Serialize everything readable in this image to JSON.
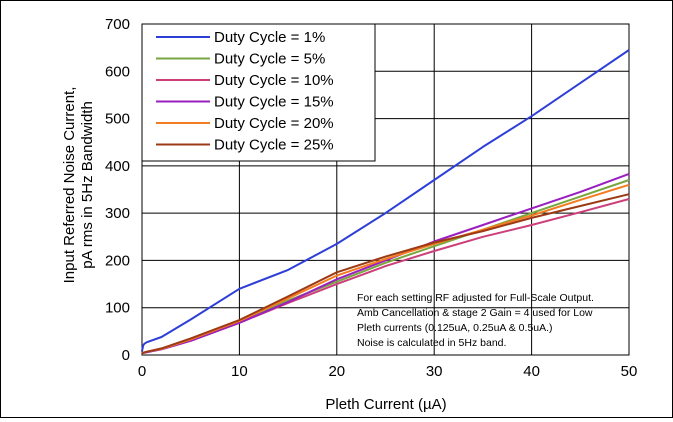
{
  "chart_data": {
    "type": "line",
    "xlabel": "Pleth Current (µA)",
    "ylabel_line1": "Input Referred Noise Current,",
    "ylabel_line2": "pA rms in 5Hz Bandwidth",
    "xlim": [
      0,
      50
    ],
    "ylim": [
      0,
      700
    ],
    "x_ticks": [
      0,
      10,
      20,
      30,
      40,
      50
    ],
    "y_ticks": [
      0,
      100,
      200,
      300,
      400,
      500,
      600,
      700
    ],
    "grid": true,
    "legend_placement": "top-left",
    "annotation": [
      "For each setting RF adjusted for Full-Scale Output.",
      "Amb Cancellation & stage 2 Gain = 4 used for Low",
      "Pleth currents (0.125uA, 0.25uA & 0.5uA.)",
      "Noise is calculated in 5Hz band."
    ],
    "series": [
      {
        "name": "Duty Cycle = 1%",
        "color": "#2e3fd8",
        "points": [
          [
            0,
            8
          ],
          [
            0.125,
            20
          ],
          [
            0.25,
            24
          ],
          [
            0.5,
            27
          ],
          [
            2,
            38
          ],
          [
            5,
            75
          ],
          [
            10,
            140
          ],
          [
            15,
            180
          ],
          [
            20,
            235
          ],
          [
            25,
            300
          ],
          [
            30,
            370
          ],
          [
            35,
            440
          ],
          [
            40,
            505
          ],
          [
            45,
            575
          ],
          [
            50,
            645
          ]
        ]
      },
      {
        "name": "Duty Cycle = 5%",
        "color": "#7aa640",
        "points": [
          [
            0,
            4
          ],
          [
            0.5,
            6
          ],
          [
            2,
            13
          ],
          [
            5,
            32
          ],
          [
            10,
            70
          ],
          [
            15,
            115
          ],
          [
            20,
            155
          ],
          [
            25,
            195
          ],
          [
            30,
            230
          ],
          [
            35,
            265
          ],
          [
            40,
            300
          ],
          [
            45,
            335
          ],
          [
            50,
            370
          ]
        ]
      },
      {
        "name": "Duty Cycle = 10%",
        "color": "#cc3f7a",
        "points": [
          [
            0,
            4
          ],
          [
            0.5,
            6
          ],
          [
            2,
            12
          ],
          [
            5,
            30
          ],
          [
            10,
            68
          ],
          [
            15,
            110
          ],
          [
            20,
            150
          ],
          [
            25,
            188
          ],
          [
            30,
            220
          ],
          [
            35,
            250
          ],
          [
            40,
            275
          ],
          [
            45,
            302
          ],
          [
            50,
            330
          ]
        ]
      },
      {
        "name": "Duty Cycle = 15%",
        "color": "#9a1fbf",
        "points": [
          [
            0,
            4
          ],
          [
            0.5,
            6
          ],
          [
            2,
            12
          ],
          [
            5,
            30
          ],
          [
            10,
            68
          ],
          [
            15,
            112
          ],
          [
            20,
            160
          ],
          [
            25,
            200
          ],
          [
            30,
            240
          ],
          [
            35,
            275
          ],
          [
            40,
            310
          ],
          [
            45,
            345
          ],
          [
            50,
            383
          ]
        ]
      },
      {
        "name": "Duty Cycle = 20%",
        "color": "#f47c20",
        "points": [
          [
            0,
            4
          ],
          [
            0.5,
            7
          ],
          [
            2,
            13
          ],
          [
            5,
            33
          ],
          [
            10,
            72
          ],
          [
            15,
            120
          ],
          [
            20,
            168
          ],
          [
            25,
            203
          ],
          [
            30,
            235
          ],
          [
            35,
            265
          ],
          [
            40,
            295
          ],
          [
            45,
            328
          ],
          [
            50,
            360
          ]
        ]
      },
      {
        "name": "Duty Cycle = 25%",
        "color": "#9c3a15",
        "points": [
          [
            0,
            4
          ],
          [
            0.5,
            7
          ],
          [
            2,
            14
          ],
          [
            5,
            35
          ],
          [
            10,
            74
          ],
          [
            15,
            124
          ],
          [
            20,
            175
          ],
          [
            25,
            208
          ],
          [
            30,
            238
          ],
          [
            35,
            262
          ],
          [
            40,
            290
          ],
          [
            45,
            315
          ],
          [
            50,
            340
          ]
        ]
      }
    ]
  }
}
